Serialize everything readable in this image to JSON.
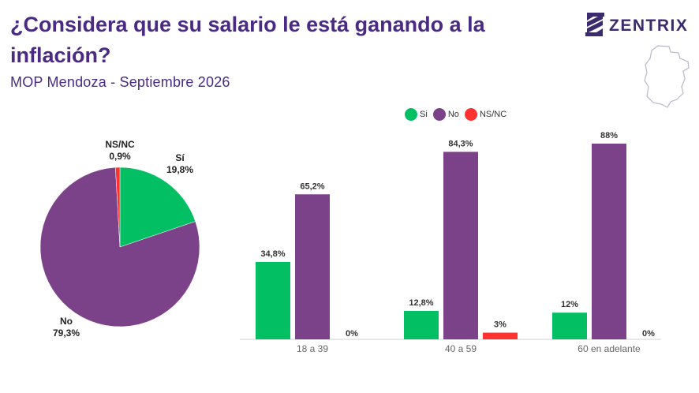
{
  "title": "¿Considera que su salario le está ganando a la inflación?",
  "subtitle": "MOP Mendoza - Septiembre 2026",
  "brand": {
    "name": "ZENTRIX"
  },
  "colors": {
    "si": "#03bf63",
    "no": "#7b4289",
    "nsnc": "#ff3131",
    "title": "#4a2a82"
  },
  "chart_data": [
    {
      "type": "pie",
      "slices": [
        {
          "label": "Sí",
          "value": 19.8,
          "text": "19,8%"
        },
        {
          "label": "No",
          "value": 79.3,
          "text": "79,3%"
        },
        {
          "label": "NS/NC",
          "value": 0.9,
          "text": "0,9%"
        }
      ]
    },
    {
      "type": "bar",
      "categories": [
        "18 a 39",
        "40 a 59",
        "60 en adelante"
      ],
      "series": [
        {
          "name": "Si",
          "values": [
            34.8,
            12.8,
            12
          ],
          "labels": [
            "34,8%",
            "12,8%",
            "12%"
          ]
        },
        {
          "name": "No",
          "values": [
            65.2,
            84.3,
            88
          ],
          "labels": [
            "65,2%",
            "84,3%",
            "88%"
          ]
        },
        {
          "name": "NS/NC",
          "values": [
            0,
            3,
            0
          ],
          "labels": [
            "0%",
            "3%",
            "0%"
          ]
        }
      ],
      "legend": "top",
      "grid": false
    }
  ]
}
